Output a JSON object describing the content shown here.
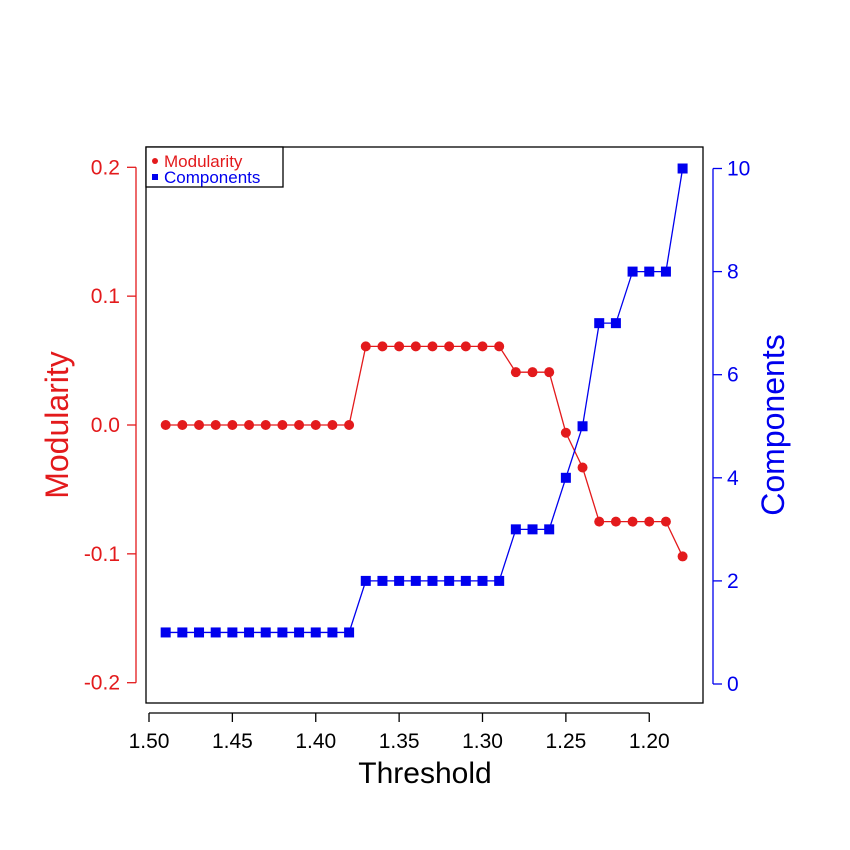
{
  "chart_data": {
    "type": "line",
    "xlabel": "Threshold",
    "ylabel_left": "Modularity",
    "ylabel_right": "Components",
    "x_reversed": true,
    "xlim": [
      1.5,
      1.18
    ],
    "x_ticks": [
      "1.50",
      "1.45",
      "1.40",
      "1.35",
      "1.30",
      "1.25",
      "1.20"
    ],
    "ylim_left": [
      -0.2,
      0.2
    ],
    "y_ticks_left": [
      "-0.2",
      "-0.1",
      "0.0",
      "0.1",
      "0.2"
    ],
    "ylim_right": [
      0,
      10
    ],
    "y_ticks_right": [
      "0",
      "2",
      "4",
      "6",
      "8",
      "10"
    ],
    "x": [
      1.49,
      1.48,
      1.47,
      1.46,
      1.45,
      1.44,
      1.43,
      1.42,
      1.41,
      1.4,
      1.39,
      1.38,
      1.37,
      1.36,
      1.35,
      1.34,
      1.33,
      1.32,
      1.31,
      1.3,
      1.29,
      1.28,
      1.27,
      1.26,
      1.25,
      1.24,
      1.23,
      1.22,
      1.21,
      1.2,
      1.19,
      1.18
    ],
    "series": [
      {
        "name": "Modularity",
        "axis": "left",
        "marker": "circle",
        "color": "#e31a1c",
        "values": [
          0.0,
          0.0,
          0.0,
          0.0,
          0.0,
          0.0,
          0.0,
          0.0,
          0.0,
          0.0,
          0.0,
          0.0,
          0.061,
          0.061,
          0.061,
          0.061,
          0.061,
          0.061,
          0.061,
          0.061,
          0.061,
          0.041,
          0.041,
          0.041,
          -0.006,
          -0.033,
          -0.075,
          -0.075,
          -0.075,
          -0.075,
          -0.075,
          -0.102
        ]
      },
      {
        "name": "Components",
        "axis": "right",
        "marker": "square",
        "color": "#0000ee",
        "values": [
          1,
          1,
          1,
          1,
          1,
          1,
          1,
          1,
          1,
          1,
          1,
          1,
          2,
          2,
          2,
          2,
          2,
          2,
          2,
          2,
          2,
          3,
          3,
          3,
          4,
          5,
          7,
          7,
          8,
          8,
          8,
          10
        ]
      }
    ],
    "legend_position": "top-left",
    "grid": false
  }
}
